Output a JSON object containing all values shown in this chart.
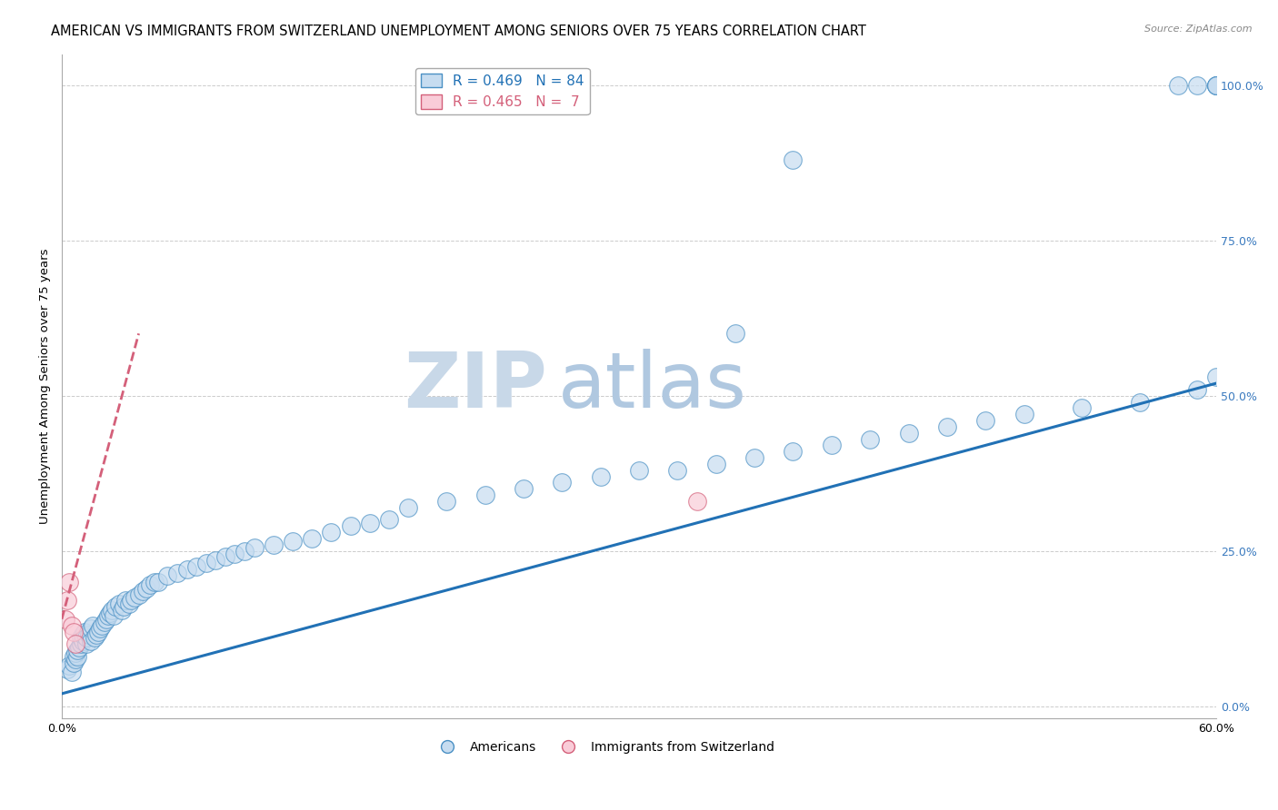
{
  "title": "AMERICAN VS IMMIGRANTS FROM SWITZERLAND UNEMPLOYMENT AMONG SENIORS OVER 75 YEARS CORRELATION CHART",
  "source": "Source: ZipAtlas.com",
  "ylabel": "Unemployment Among Seniors over 75 years",
  "xlabel": "",
  "watermark_zip": "ZIP",
  "watermark_atlas": "atlas",
  "xlim": [
    0.0,
    0.6
  ],
  "ylim": [
    -0.02,
    1.05
  ],
  "yticks": [
    0.0,
    0.25,
    0.5,
    0.75,
    1.0
  ],
  "yticklabels": [
    "0.0%",
    "25.0%",
    "50.0%",
    "75.0%",
    "100.0%"
  ],
  "xtick_vals": [
    0.0,
    0.1,
    0.2,
    0.3,
    0.4,
    0.5,
    0.6
  ],
  "xticklabels": [
    "0.0%",
    "",
    "",
    "",
    "",
    "",
    "60.0%"
  ],
  "americans_x": [
    0.003,
    0.004,
    0.005,
    0.006,
    0.006,
    0.007,
    0.007,
    0.008,
    0.008,
    0.009,
    0.01,
    0.01,
    0.011,
    0.011,
    0.012,
    0.013,
    0.013,
    0.014,
    0.015,
    0.015,
    0.016,
    0.017,
    0.018,
    0.019,
    0.02,
    0.021,
    0.022,
    0.023,
    0.024,
    0.025,
    0.026,
    0.027,
    0.028,
    0.03,
    0.031,
    0.032,
    0.033,
    0.035,
    0.036,
    0.038,
    0.04,
    0.042,
    0.044,
    0.046,
    0.048,
    0.05,
    0.055,
    0.06,
    0.065,
    0.07,
    0.075,
    0.08,
    0.085,
    0.09,
    0.095,
    0.1,
    0.11,
    0.12,
    0.13,
    0.14,
    0.15,
    0.16,
    0.17,
    0.18,
    0.2,
    0.22,
    0.24,
    0.26,
    0.28,
    0.3,
    0.32,
    0.34,
    0.36,
    0.38,
    0.4,
    0.42,
    0.44,
    0.46,
    0.48,
    0.5,
    0.53,
    0.56,
    0.59,
    0.6
  ],
  "americans_y": [
    0.06,
    0.065,
    0.055,
    0.07,
    0.08,
    0.075,
    0.085,
    0.08,
    0.09,
    0.095,
    0.1,
    0.11,
    0.105,
    0.115,
    0.12,
    0.1,
    0.11,
    0.115,
    0.105,
    0.125,
    0.13,
    0.11,
    0.115,
    0.12,
    0.125,
    0.13,
    0.135,
    0.14,
    0.145,
    0.15,
    0.155,
    0.145,
    0.16,
    0.165,
    0.155,
    0.16,
    0.17,
    0.165,
    0.17,
    0.175,
    0.18,
    0.185,
    0.19,
    0.195,
    0.2,
    0.2,
    0.21,
    0.215,
    0.22,
    0.225,
    0.23,
    0.235,
    0.24,
    0.245,
    0.25,
    0.255,
    0.26,
    0.265,
    0.27,
    0.28,
    0.29,
    0.295,
    0.3,
    0.32,
    0.33,
    0.34,
    0.35,
    0.36,
    0.37,
    0.38,
    0.38,
    0.39,
    0.4,
    0.41,
    0.42,
    0.43,
    0.44,
    0.45,
    0.46,
    0.47,
    0.48,
    0.49,
    0.51,
    0.53
  ],
  "americans_outliers_x": [
    0.38,
    0.6,
    0.6,
    0.6,
    0.6,
    0.59,
    0.58,
    0.35
  ],
  "americans_outliers_y": [
    0.88,
    1.0,
    1.0,
    1.0,
    1.0,
    1.0,
    1.0,
    0.6
  ],
  "swiss_x": [
    0.002,
    0.003,
    0.004,
    0.005,
    0.006,
    0.007,
    0.33
  ],
  "swiss_y": [
    0.14,
    0.17,
    0.2,
    0.13,
    0.12,
    0.1,
    0.33
  ],
  "blue_regression_x0": 0.0,
  "blue_regression_y0": 0.02,
  "blue_regression_x1": 0.6,
  "blue_regression_y1": 0.52,
  "pink_regression_x0": 0.0,
  "pink_regression_y0": 0.14,
  "pink_regression_x1": 0.04,
  "pink_regression_y1": 0.6,
  "americans_r": 0.469,
  "americans_n": 84,
  "swiss_r": 0.465,
  "swiss_n": 7,
  "blue_fill_color": "#c6dcf0",
  "blue_edge_color": "#4a90c4",
  "pink_fill_color": "#f9ccd8",
  "pink_edge_color": "#d4607a",
  "blue_line_color": "#2171b5",
  "pink_line_color": "#d4607a",
  "grid_color": "#cccccc",
  "background_color": "#ffffff",
  "title_fontsize": 10.5,
  "axis_fontsize": 9,
  "watermark_zip_color": "#c8d8e8",
  "watermark_atlas_color": "#b0c8e0",
  "watermark_fontsize": 62
}
